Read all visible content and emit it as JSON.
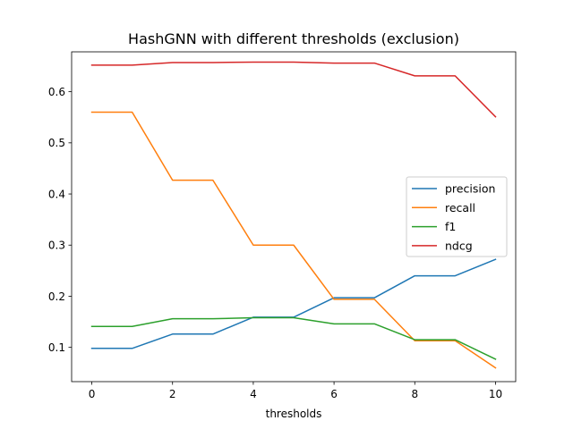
{
  "chart_data": {
    "type": "line",
    "title": "HashGNN with different thresholds (exclusion)",
    "xlabel": "thresholds",
    "ylabel": "",
    "x": [
      0,
      1,
      2,
      3,
      4,
      5,
      6,
      7,
      8,
      9,
      10
    ],
    "xlim": [
      -0.5,
      10.5
    ],
    "ylim": [
      0.033,
      0.678
    ],
    "xticks": [
      0,
      2,
      4,
      6,
      8,
      10
    ],
    "yticks": [
      0.1,
      0.2,
      0.3,
      0.4,
      0.5,
      0.6
    ],
    "grid": false,
    "legend_position": "center-right",
    "series": [
      {
        "name": "precision",
        "color": "#1f77b4",
        "values": [
          0.098,
          0.098,
          0.126,
          0.126,
          0.159,
          0.159,
          0.197,
          0.197,
          0.24,
          0.24,
          0.272
        ]
      },
      {
        "name": "recall",
        "color": "#ff7f0e",
        "values": [
          0.56,
          0.56,
          0.427,
          0.427,
          0.3,
          0.3,
          0.194,
          0.194,
          0.113,
          0.113,
          0.06
        ]
      },
      {
        "name": "f1",
        "color": "#2ca02c",
        "values": [
          0.141,
          0.141,
          0.156,
          0.156,
          0.158,
          0.158,
          0.146,
          0.146,
          0.115,
          0.115,
          0.077
        ]
      },
      {
        "name": "ndcg",
        "color": "#d62728",
        "values": [
          0.652,
          0.652,
          0.657,
          0.657,
          0.658,
          0.658,
          0.656,
          0.656,
          0.631,
          0.631,
          0.551
        ]
      }
    ]
  }
}
